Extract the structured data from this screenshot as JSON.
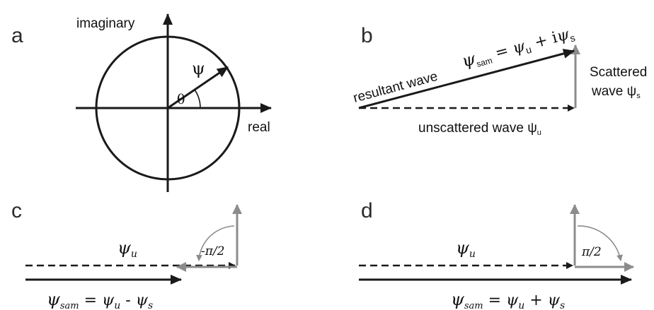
{
  "panels": {
    "a": {
      "letter": "a",
      "axis_imaginary": "imaginary",
      "axis_real": "real",
      "vector_label": "ψ",
      "angle_label": "θ"
    },
    "b": {
      "letter": "b",
      "resultant_label": "resultant wave",
      "equation": {
        "lhs": "ψ",
        "lhs_sub": "sam",
        "eq_mid": " = ψ",
        "mid_sub": "u",
        "op": " + i",
        "rhs": "ψ",
        "rhs_sub": "s"
      },
      "scattered_line1": "Scattered",
      "scattered_line2": "wave ψ",
      "scattered_sub": "s",
      "unscattered_label": "unscattered wave ψ",
      "unscattered_sub": "u"
    },
    "c": {
      "letter": "c",
      "psi_u": "ψ",
      "psi_u_sub": "u",
      "angle_label": "-π/2",
      "equation": {
        "lhs": "ψ",
        "lhs_sub": "sam",
        "eq_mid": " = ψ",
        "mid_sub": "u",
        "op": " - ψ",
        "rhs_sub": "s"
      }
    },
    "d": {
      "letter": "d",
      "psi_u": "ψ",
      "psi_u_sub": "u",
      "angle_label": "π/2",
      "equation": {
        "lhs": "ψ",
        "lhs_sub": "sam",
        "eq_mid": " = ψ",
        "mid_sub": "u",
        "op": " + ψ",
        "rhs_sub": "s"
      }
    }
  },
  "colors": {
    "line": "#1a1a1a",
    "gray_arrow": "#8c8c8c"
  }
}
